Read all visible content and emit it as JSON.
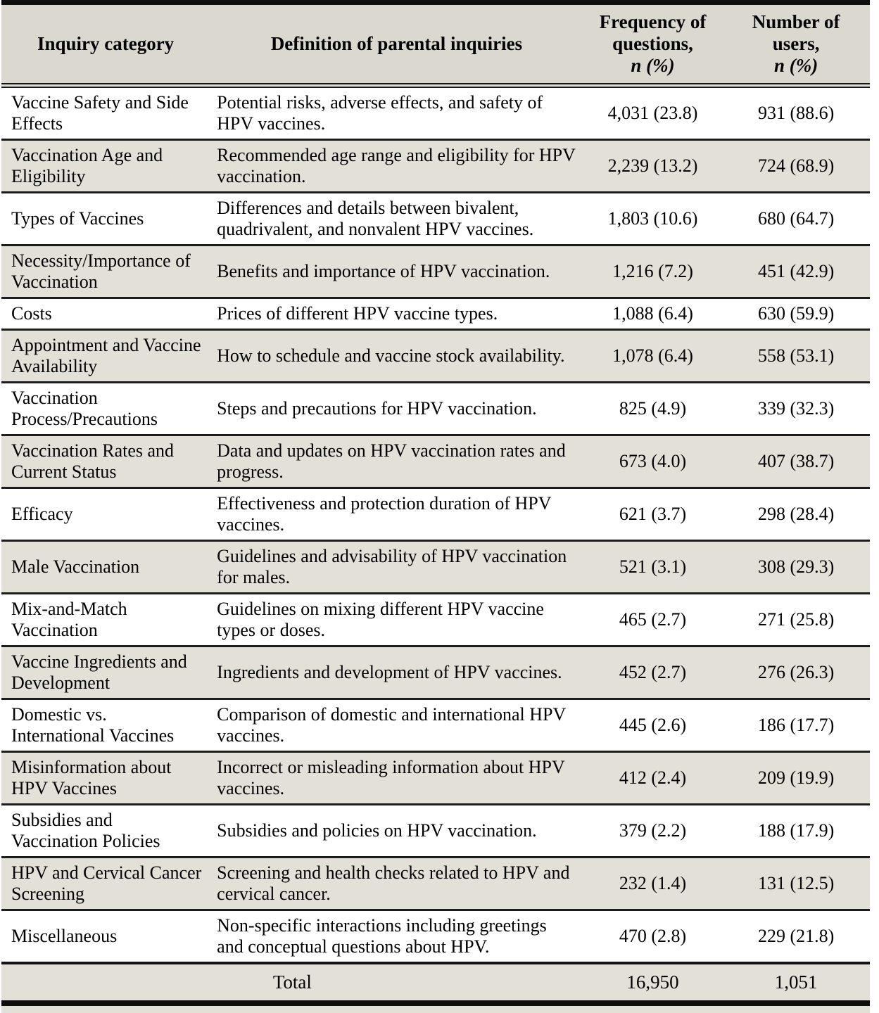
{
  "colors": {
    "row_shade": "#e3e1d7",
    "header_bg": "#dbd9cf",
    "border": "#151515",
    "text": "#000000"
  },
  "table": {
    "header": {
      "category": "Inquiry category",
      "definition": "Definition of parental inquiries",
      "frequency_line1": "Frequency of",
      "frequency_line2": "questions,",
      "frequency_sub": "n (%)",
      "users_line1": "Number of",
      "users_line2": "users,",
      "users_sub": "n (%)"
    },
    "rows": [
      {
        "category": "Vaccine Safety and Side Effects",
        "definition": "Potential risks, adverse effects, and safety of HPV vaccines.",
        "frequency": "4,031 (23.8)",
        "users": "931 (88.6)"
      },
      {
        "category": "Vaccination Age and Eligibility",
        "definition": "Recommended age range and eligibility for HPV vaccination.",
        "frequency": "2,239 (13.2)",
        "users": "724 (68.9)"
      },
      {
        "category": "Types of Vaccines",
        "definition": "Differences and details between bivalent, quadrivalent, and nonvalent HPV vaccines.",
        "frequency": "1,803 (10.6)",
        "users": "680 (64.7)"
      },
      {
        "category": "Necessity/Importance of Vaccination",
        "definition": "Benefits and importance of HPV vaccination.",
        "frequency": "1,216 (7.2)",
        "users": "451 (42.9)"
      },
      {
        "category": "Costs",
        "definition": "Prices of different HPV vaccine types.",
        "frequency": "1,088 (6.4)",
        "users": "630 (59.9)"
      },
      {
        "category": "Appointment and Vaccine Availability",
        "definition": "How to schedule and vaccine stock availability.",
        "frequency": "1,078 (6.4)",
        "users": "558 (53.1)"
      },
      {
        "category": "Vaccination Process/Precautions",
        "definition": "Steps and precautions for HPV vaccination.",
        "frequency": "825 (4.9)",
        "users": "339 (32.3)"
      },
      {
        "category": "Vaccination Rates and Current Status",
        "definition": "Data and updates on HPV vaccination rates and progress.",
        "frequency": "673 (4.0)",
        "users": "407 (38.7)"
      },
      {
        "category": "Efficacy",
        "definition": "Effectiveness and protection duration of HPV vaccines.",
        "frequency": "621 (3.7)",
        "users": "298 (28.4)"
      },
      {
        "category": "Male Vaccination",
        "definition": "Guidelines and advisability of HPV vaccination for males.",
        "frequency": "521 (3.1)",
        "users": "308 (29.3)"
      },
      {
        "category": "Mix-and-Match Vaccination",
        "definition": "Guidelines on mixing different HPV vaccine types or doses.",
        "frequency": "465 (2.7)",
        "users": "271 (25.8)"
      },
      {
        "category": "Vaccine Ingredients and Development",
        "definition": "Ingredients and development of HPV vaccines.",
        "frequency": "452 (2.7)",
        "users": "276 (26.3)"
      },
      {
        "category": "Domestic vs. International Vaccines",
        "definition": "Comparison of domestic and international HPV vaccines.",
        "frequency": "445 (2.6)",
        "users": "186 (17.7)"
      },
      {
        "category": "Misinformation about HPV Vaccines",
        "definition": "Incorrect or misleading information about HPV vaccines.",
        "frequency": "412 (2.4)",
        "users": "209 (19.9)"
      },
      {
        "category": "Subsidies and Vaccination Policies",
        "definition": "Subsidies and policies on HPV vaccination.",
        "frequency": "379 (2.2)",
        "users": "188 (17.9)"
      },
      {
        "category": "HPV and Cervical Cancer Screening",
        "definition": "Screening and health checks related to HPV and cervical cancer.",
        "frequency": "232 (1.4)",
        "users": "131 (12.5)"
      },
      {
        "category": "Miscellaneous",
        "definition": "Non-specific interactions including greetings and conceptual questions about HPV.",
        "frequency": "470 (2.8)",
        "users": "229 (21.8)"
      }
    ],
    "total": {
      "label": "Total",
      "frequency": "16,950",
      "users": "1,051"
    }
  }
}
